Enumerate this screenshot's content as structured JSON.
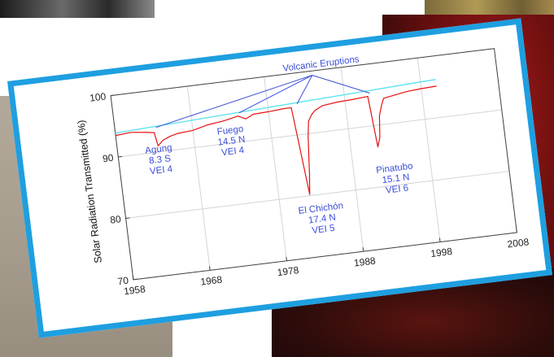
{
  "chart_data": {
    "type": "line",
    "title": "",
    "xlabel": "",
    "ylabel": "Solar Radiation Transmitted (%)",
    "xlim": [
      1958,
      2008
    ],
    "ylim": [
      70,
      100
    ],
    "xticks": [
      1958,
      1968,
      1978,
      1988,
      1998,
      2008
    ],
    "yticks": [
      70,
      80,
      90,
      100
    ],
    "grid": true,
    "series": [
      {
        "color": "#e81010",
        "x": [
          1958,
          1960,
          1962,
          1963,
          1963.3,
          1964,
          1965,
          1966,
          1968,
          1970,
          1972,
          1974,
          1975,
          1976,
          1978,
          1980,
          1981,
          1982,
          1982.3,
          1982.7,
          1983,
          1983.5,
          1984,
          1985,
          1987,
          1989,
          1991,
          1991.5,
          1991.9,
          1992.2,
          1992.6,
          1993,
          1994,
          1995,
          1996,
          1998,
          2000
        ],
        "y": [
          93.5,
          93.7,
          93.4,
          93.2,
          91.0,
          91.8,
          92.3,
          92.6,
          92.8,
          93.4,
          93.7,
          94.2,
          93.6,
          94.2,
          94.3,
          94.5,
          94.5,
          80.2,
          83.5,
          89.5,
          92.0,
          93.0,
          93.6,
          94.2,
          94.5,
          94.6,
          94.8,
          86.5,
          88.0,
          91.5,
          93.0,
          94.2,
          94.4,
          94.6,
          94.8,
          95.0,
          95.1
        ]
      },
      {
        "color": "#5fe3f0",
        "x": [
          1958,
          2000
        ],
        "y": [
          93.9,
          96.2
        ]
      }
    ],
    "annotations": {
      "header": "Volcanic Eruptions",
      "agung": [
        "Agung",
        "8.3 S",
        "VEI  4"
      ],
      "fuego": [
        "Fuego",
        "14.5 N",
        "VEI  4"
      ],
      "elchichon": [
        "El Chichón",
        "17.4 N",
        "VEI  5"
      ],
      "pinatubo": [
        "Pinatubo",
        "15.1 N",
        "VEI  6"
      ]
    },
    "colors": {
      "frame": "#1e9fe0",
      "annotation": "#3b4ed8",
      "data": "#e81010",
      "baseline": "#5fe3f0"
    }
  }
}
